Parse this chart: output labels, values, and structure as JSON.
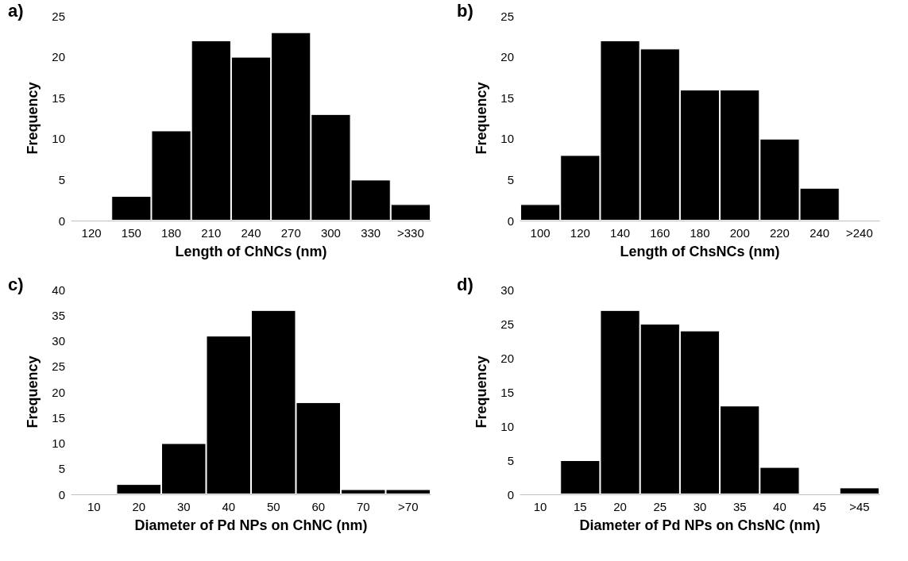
{
  "chart_data": [
    {
      "type": "bar",
      "annotations": [
        "a)"
      ],
      "xlabel": "Length of ChNCs (nm)",
      "ylabel": "Frequency",
      "categories": [
        "120",
        "150",
        "180",
        "210",
        "240",
        "270",
        "300",
        "330",
        ">330"
      ],
      "values": [
        0,
        3,
        11,
        22,
        20,
        23,
        13,
        5,
        2
      ],
      "color": "#000000",
      "ylim": [
        0,
        25
      ],
      "yticks": [
        0,
        5,
        10,
        15,
        20,
        25
      ],
      "grid": false
    },
    {
      "type": "bar",
      "annotations": [
        "b)"
      ],
      "xlabel": "Length of ChsNCs (nm)",
      "ylabel": "Frequency",
      "categories": [
        "100",
        "120",
        "140",
        "160",
        "180",
        "200",
        "220",
        "240",
        ">240"
      ],
      "values": [
        2,
        8,
        22,
        21,
        16,
        16,
        10,
        4,
        0
      ],
      "color": "#000000",
      "ylim": [
        0,
        25
      ],
      "yticks": [
        0,
        5,
        10,
        15,
        20,
        25
      ],
      "grid": false
    },
    {
      "type": "bar",
      "annotations": [
        "c)"
      ],
      "xlabel": "Diameter of Pd NPs on ChNC (nm)",
      "ylabel": "Frequency",
      "categories": [
        "10",
        "20",
        "30",
        "40",
        "50",
        "60",
        "70",
        ">70"
      ],
      "values": [
        0,
        2,
        10,
        31,
        36,
        18,
        1,
        1
      ],
      "color": "#000000",
      "ylim": [
        0,
        40
      ],
      "yticks": [
        0,
        5,
        10,
        15,
        20,
        25,
        30,
        35,
        40
      ],
      "grid": false
    },
    {
      "type": "bar",
      "annotations": [
        "d)"
      ],
      "xlabel": "Diameter of Pd NPs on ChsNC (nm)",
      "ylabel": "Frequency",
      "categories": [
        "10",
        "15",
        "20",
        "25",
        "30",
        "35",
        "40",
        "45",
        ">45"
      ],
      "values": [
        0,
        5,
        27,
        25,
        24,
        13,
        4,
        0,
        1
      ],
      "color": "#000000",
      "ylim": [
        0,
        30
      ],
      "yticks": [
        0,
        5,
        10,
        15,
        20,
        25,
        30
      ],
      "grid": false
    }
  ]
}
